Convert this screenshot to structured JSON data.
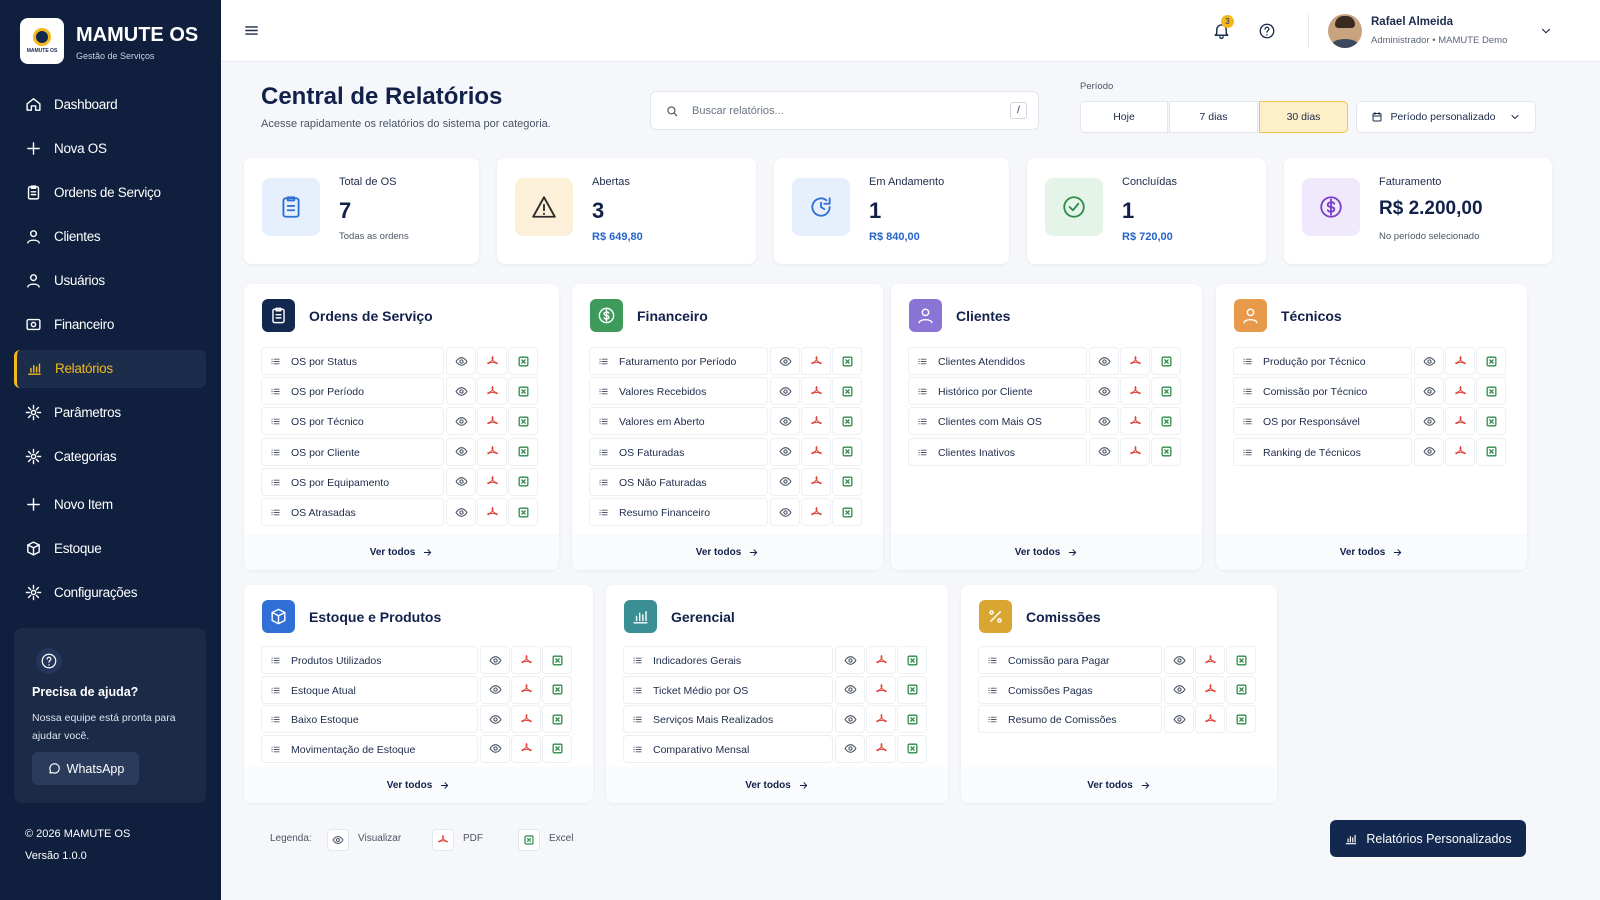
{
  "sidebar": {
    "logo_text": "MAMUTE OS",
    "name": "MAMUTE OS",
    "subtitle": "Gestão de Serviços",
    "menu": [
      "Dashboard",
      "Nova OS",
      "Ordens de Serviço",
      "Clientes",
      "Usuários",
      "Financeiro",
      "Relatórios",
      "Parâmetros",
      "Categorias",
      "Novo Item",
      "Estoque",
      "Configurações"
    ],
    "active": 6,
    "help": {
      "title": "Precisa de ajuda?",
      "text": "Nossa equipe está pronta para ajudar você.",
      "button": "WhatsApp"
    },
    "footer": {
      "copyright": "© 2026 MAMUTE OS",
      "version": "Versão 1.0.0"
    }
  },
  "topbar": {
    "notifications": 3,
    "user": {
      "name": "Rafael Almeida",
      "role": "Administrador • MAMUTE Demo"
    }
  },
  "header": {
    "title": "Central de Relatórios",
    "subtitle": "Acesse rapidamente os relatórios do sistema por categoria.",
    "search_placeholder": "Buscar relatórios...",
    "search_shortcut": "/",
    "period_label": "Período",
    "periods": [
      "Hoje",
      "7 dias",
      "30 dias"
    ],
    "active_period": 2,
    "custom_period": "Período personalizado"
  },
  "stats": [
    {
      "label": "Total de OS",
      "value": 7,
      "note": "Todas as ordens",
      "note_color": "#4b5565"
    },
    {
      "label": "Abertas",
      "value": 3,
      "note": "R$ 649,80",
      "note_color": "#2563c9"
    },
    {
      "label": "Em Andamento",
      "value": 1,
      "note": "R$ 840,00",
      "note_color": "#2563c9"
    },
    {
      "label": "Concluídas",
      "value": 1,
      "note": "R$ 720,00",
      "note_color": "#2563c9"
    },
    {
      "label": "Faturamento",
      "value": "R$ 2.200,00",
      "note": "No período selecionado",
      "note_color": "#4b5565"
    }
  ],
  "categories": [
    {
      "title": "Ordens de Serviço",
      "color": "#13284f",
      "reports": [
        "OS por Status",
        "OS por Período",
        "OS por Técnico",
        "OS por Cliente",
        "OS por Equipamento",
        "OS Atrasadas"
      ],
      "link": "Ver todos"
    },
    {
      "title": "Financeiro",
      "color": "#3d9a5b",
      "reports": [
        "Faturamento por Período",
        "Valores Recebidos",
        "Valores em Aberto",
        "OS Faturadas",
        "OS Não Faturadas",
        "Resumo Financeiro"
      ],
      "link": "Ver todos"
    },
    {
      "title": "Clientes",
      "color": "#8a74d6",
      "reports": [
        "Clientes Atendidos",
        "Histórico por Cliente",
        "Clientes com Mais OS",
        "Clientes Inativos"
      ],
      "link": "Ver todos"
    },
    {
      "title": "Técnicos",
      "color": "#e89a4b",
      "reports": [
        "Produção por Técnico",
        "Comissão por Técnico",
        "OS por Responsável",
        "Ranking de Técnicos"
      ],
      "link": "Ver todos"
    },
    {
      "title": "Estoque e Produtos",
      "color": "#2f6fd6",
      "reports": [
        "Produtos Utilizados",
        "Estoque Atual",
        "Baixo Estoque",
        "Movimentação de Estoque"
      ],
      "link": "Ver todos"
    },
    {
      "title": "Gerencial",
      "color": "#3a8f94",
      "reports": [
        "Indicadores Gerais",
        "Ticket Médio por OS",
        "Serviços Mais Realizados",
        "Comparativo Mensal"
      ],
      "link": "Ver todos"
    },
    {
      "title": "Comissões",
      "color": "#d9a632",
      "reports": [
        "Comissão para Pagar",
        "Comissões Pagas",
        "Resumo de Comissões"
      ],
      "link": "Ver todos"
    }
  ],
  "legend": {
    "label": "Legenda:",
    "items": [
      "Visualizar",
      "PDF",
      "Excel"
    ]
  },
  "action": "Relatórios Personalizados"
}
